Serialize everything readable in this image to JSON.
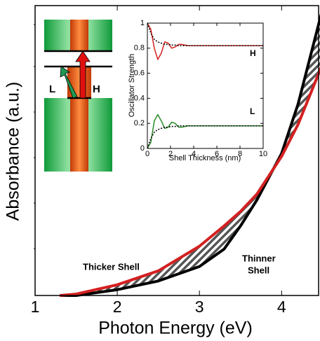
{
  "chart_data": [
    {
      "type": "line",
      "xlabel": "Photon Energy (eV)",
      "ylabel": "Absorbance (a.u.)",
      "x": [
        1.3,
        1.5,
        2.0,
        2.5,
        3.0,
        3.3,
        3.5,
        3.7,
        4.0,
        4.2,
        4.4,
        4.5
      ],
      "series": [
        {
          "color": "#000000",
          "values": [
            0,
            0,
            2,
            5,
            10,
            16,
            24,
            33,
            49,
            66,
            88,
            99
          ]
        },
        {
          "color": "#d42020",
          "values": [
            0,
            0.5,
            3.7,
            8.5,
            17,
            24,
            29,
            35,
            48,
            59,
            73,
            80
          ]
        }
      ],
      "xlim": [
        1,
        4.45
      ],
      "xticks": [
        1,
        2,
        3,
        4
      ],
      "ylim": [
        0,
        100
      ],
      "annotations": {
        "thicker": "Thicker Shell",
        "thinner": [
          "Thinner",
          "Shell"
        ]
      }
    },
    {
      "type": "line",
      "xlabel": "Shell Thickness (nm)",
      "ylabel": "Oscillator Strength",
      "x": [
        0,
        0.3,
        0.6,
        0.9,
        1.2,
        1.5,
        1.8,
        2.1,
        2.4,
        2.7,
        3,
        3.5,
        4,
        5,
        6,
        8,
        10
      ],
      "series": [
        {
          "color": "#d42020",
          "values": [
            1.0,
            0.95,
            0.8,
            0.71,
            0.76,
            0.85,
            0.84,
            0.8,
            0.81,
            0.83,
            0.83,
            0.82,
            0.82,
            0.82,
            0.82,
            0.82,
            0.82
          ]
        },
        {
          "color": "#2a8a2a",
          "values": [
            0,
            0.05,
            0.22,
            0.27,
            0.22,
            0.16,
            0.17,
            0.21,
            0.2,
            0.17,
            0.17,
            0.18,
            0.18,
            0.18,
            0.18,
            0.18,
            0.18
          ]
        },
        {
          "color": "#000000",
          "dashed": true,
          "values": [
            1.0,
            0.92,
            0.87,
            0.85,
            0.84,
            0.83,
            0.83,
            0.825,
            0.825,
            0.82,
            0.82,
            0.82,
            0.82,
            0.82,
            0.82,
            0.82,
            0.82
          ]
        },
        {
          "color": "#000000",
          "dashed": true,
          "values": [
            0,
            0.08,
            0.13,
            0.15,
            0.16,
            0.17,
            0.17,
            0.175,
            0.175,
            0.18,
            0.18,
            0.18,
            0.18,
            0.18,
            0.18,
            0.18,
            0.18
          ]
        }
      ],
      "xlim": [
        0,
        10
      ],
      "xticks": [
        0,
        2,
        4,
        6,
        8,
        10
      ],
      "ylim": [
        0,
        1
      ],
      "yticks": [
        0,
        0.2,
        0.4,
        0.6,
        0.8,
        1
      ],
      "annotations": {
        "H": "H",
        "L": "L"
      }
    }
  ],
  "diagram": {
    "labels": [
      "L",
      "H"
    ]
  }
}
